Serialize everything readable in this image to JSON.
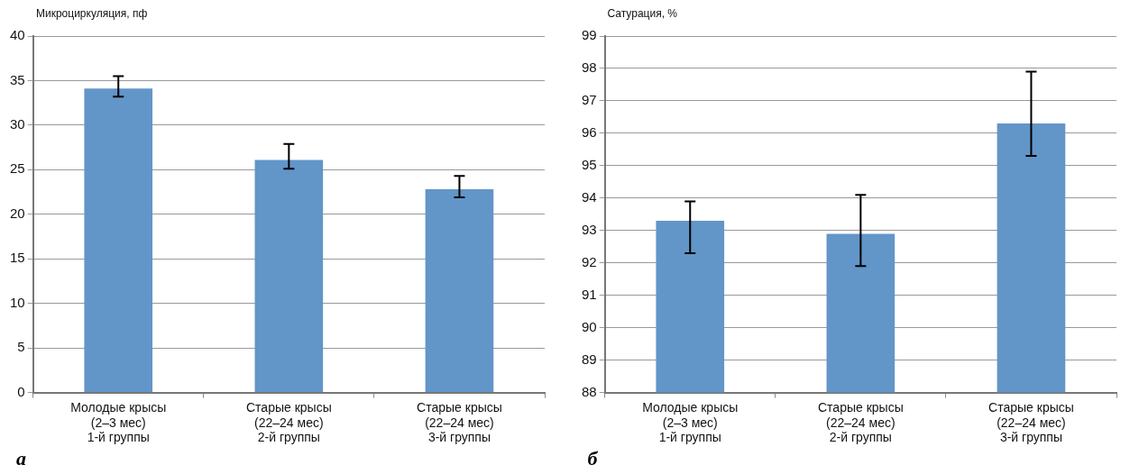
{
  "chart_data": [
    {
      "type": "bar",
      "ylabel": "Микроциркуляция, пф",
      "categories": [
        "Молодые крысы\n(2–3 мес)\n1-й группы",
        "Старые крысы\n(22–24 мес)\n2-й группы",
        "Старые крысы\n(22–24 мес)\n3-й группы"
      ],
      "values": [
        34.1,
        26.1,
        22.8
      ],
      "errors": [
        [
          33.2,
          35.5
        ],
        [
          25.1,
          27.9
        ],
        [
          21.9,
          24.3
        ]
      ],
      "color": "#6295c8",
      "ylim": [
        0,
        40
      ],
      "yticks": [
        0,
        5,
        10,
        15,
        20,
        25,
        30,
        35,
        40
      ],
      "grid": "y",
      "annotations": [
        "а"
      ]
    },
    {
      "type": "bar",
      "ylabel": "Сатурация, %",
      "categories": [
        "Молодые крысы\n(2–3 мес)\n1-й группы",
        "Старые крысы\n(22–24 мес)\n2-й группы",
        "Старые крысы\n(22–24 мес)\n3-й группы"
      ],
      "values": [
        93.3,
        92.9,
        96.3
      ],
      "errors": [
        [
          92.3,
          93.9
        ],
        [
          91.9,
          94.1
        ],
        [
          95.3,
          97.9
        ]
      ],
      "color": "#6295c8",
      "ylim": [
        88,
        99
      ],
      "yticks": [
        88,
        89,
        90,
        91,
        92,
        93,
        94,
        95,
        96,
        97,
        98,
        99
      ],
      "grid": "y",
      "annotations": [
        "б"
      ]
    }
  ]
}
